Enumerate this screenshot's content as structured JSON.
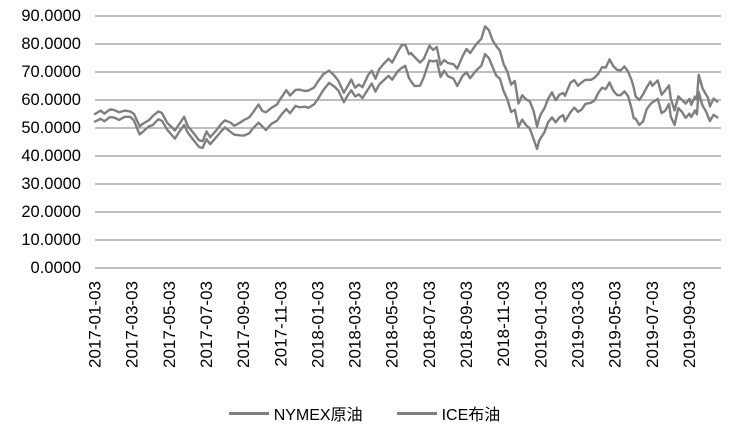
{
  "window": {
    "background": "#FFFFFF"
  },
  "chart_data": {
    "type": "line",
    "title": "",
    "xlabel": "",
    "ylabel": "",
    "ylim": [
      0,
      90
    ],
    "ytick_step": 10,
    "yticks": [
      "90.0000",
      "80.0000",
      "70.0000",
      "60.0000",
      "50.0000",
      "40.0000",
      "30.0000",
      "20.0000",
      "10.0000",
      "0.0000"
    ],
    "xticks": [
      "2017-01-03",
      "2017-03-03",
      "2017-05-03",
      "2017-07-03",
      "2017-09-03",
      "2017-11-03",
      "2018-01-03",
      "2018-03-03",
      "2018-05-03",
      "2018-07-03",
      "2018-09-03",
      "2018-11-03",
      "2019-01-03",
      "2019-03-03",
      "2019-05-03",
      "2019-07-03",
      "2019-09-03"
    ],
    "xtick_interval_months": 2,
    "x_range_months": [
      0,
      33.7
    ],
    "grid": "horizontal",
    "legend_position": "bottom",
    "colors": {
      "series_gray": "#7F7F7F",
      "gridline": "#7F7F7F",
      "axis_text": "#000000",
      "background": "#FFFFFF"
    },
    "x_months": [
      0.0,
      0.3,
      0.5,
      0.8,
      1.0,
      1.3,
      1.6,
      1.9,
      2.1,
      2.4,
      2.6,
      2.9,
      3.1,
      3.4,
      3.6,
      3.9,
      4.1,
      4.3,
      4.6,
      4.8,
      5.0,
      5.3,
      5.6,
      5.8,
      6.0,
      6.2,
      6.5,
      6.8,
      7.0,
      7.3,
      7.5,
      7.8,
      8.0,
      8.3,
      8.5,
      8.8,
      9.0,
      9.2,
      9.5,
      9.8,
      10.0,
      10.3,
      10.5,
      10.8,
      11.0,
      11.3,
      11.5,
      11.8,
      12.0,
      12.3,
      12.6,
      12.9,
      13.1,
      13.4,
      13.6,
      13.8,
      14.0,
      14.2,
      14.4,
      14.7,
      14.9,
      15.1,
      15.3,
      15.5,
      15.8,
      16.0,
      16.3,
      16.5,
      16.7,
      16.9,
      17.0,
      17.2,
      17.5,
      17.7,
      18.0,
      18.2,
      18.4,
      18.6,
      18.8,
      19.0,
      19.3,
      19.5,
      19.8,
      20.0,
      20.2,
      20.5,
      20.8,
      21.0,
      21.2,
      21.4,
      21.6,
      21.8,
      22.0,
      22.2,
      22.4,
      22.6,
      22.8,
      23.0,
      23.2,
      23.4,
      23.6,
      23.8,
      23.9,
      24.0,
      24.2,
      24.4,
      24.6,
      24.8,
      25.0,
      25.2,
      25.3,
      25.6,
      25.8,
      26.0,
      26.2,
      26.4,
      26.7,
      26.9,
      27.1,
      27.3,
      27.5,
      27.7,
      27.9,
      28.1,
      28.3,
      28.5,
      28.7,
      28.9,
      29.0,
      29.1,
      29.3,
      29.5,
      29.7,
      29.9,
      30.0,
      30.3,
      30.5,
      30.7,
      30.9,
      31.0,
      31.2,
      31.4,
      31.6,
      31.8,
      32.0,
      32.1,
      32.3,
      32.4,
      32.5,
      32.7,
      32.9,
      33.0,
      33.1,
      33.3,
      33.5
    ],
    "series": [
      {
        "name": "NYMEX原油",
        "color": "#7F7F7F",
        "values": [
          52.3,
          53.3,
          52.4,
          53.9,
          53.8,
          52.9,
          54.0,
          54.0,
          52.6,
          47.7,
          48.8,
          50.6,
          51.0,
          53.1,
          52.6,
          49.3,
          47.7,
          46.2,
          49.3,
          51.1,
          48.3,
          45.7,
          43.2,
          42.9,
          46.0,
          44.2,
          46.5,
          48.9,
          50.2,
          48.6,
          47.6,
          47.4,
          47.3,
          48.1,
          49.9,
          51.9,
          50.6,
          49.3,
          51.5,
          52.6,
          54.5,
          56.8,
          55.3,
          57.9,
          57.4,
          57.6,
          57.2,
          58.5,
          60.4,
          63.6,
          66.1,
          64.7,
          63.4,
          59.2,
          61.6,
          63.5,
          61.3,
          62.0,
          60.7,
          63.9,
          65.9,
          63.0,
          65.5,
          66.8,
          68.6,
          67.3,
          70.3,
          71.4,
          72.2,
          67.9,
          66.8,
          65.0,
          65.1,
          68.1,
          74.1,
          73.8,
          74.1,
          68.2,
          70.5,
          68.5,
          67.6,
          65.0,
          68.7,
          69.9,
          67.8,
          70.4,
          72.3,
          76.4,
          75.0,
          71.9,
          68.7,
          67.6,
          63.1,
          60.2,
          55.7,
          56.5,
          50.4,
          53.0,
          51.0,
          49.9,
          46.2,
          42.5,
          45.3,
          46.5,
          48.5,
          52.1,
          53.8,
          52.0,
          53.8,
          54.6,
          52.4,
          55.6,
          57.3,
          55.8,
          56.6,
          58.6,
          59.0,
          59.9,
          62.6,
          64.4,
          63.9,
          66.3,
          63.3,
          61.8,
          61.7,
          63.1,
          61.4,
          56.6,
          53.5,
          53.3,
          51.1,
          52.3,
          56.7,
          58.5,
          59.1,
          60.4,
          55.3,
          56.2,
          58.6,
          54.0,
          51.1,
          57.1,
          55.7,
          53.6,
          55.1,
          53.9,
          56.3,
          54.9,
          62.9,
          58.1,
          55.9,
          54.1,
          52.5,
          54.7,
          53.8
        ]
      },
      {
        "name": "ICE布油",
        "color": "#7F7F7F",
        "values": [
          55.0,
          56.2,
          55.1,
          56.6,
          56.5,
          55.6,
          56.2,
          55.9,
          55.0,
          50.6,
          51.6,
          52.8,
          54.2,
          55.9,
          55.4,
          51.7,
          50.5,
          49.1,
          52.0,
          54.0,
          50.6,
          48.2,
          45.6,
          45.3,
          48.8,
          46.7,
          48.9,
          51.5,
          52.7,
          51.9,
          50.8,
          51.9,
          52.8,
          53.8,
          55.5,
          58.4,
          56.1,
          55.6,
          57.2,
          58.4,
          60.6,
          63.5,
          61.6,
          63.6,
          63.7,
          63.2,
          63.4,
          64.5,
          66.6,
          69.3,
          70.5,
          68.6,
          66.9,
          62.6,
          64.9,
          67.3,
          64.4,
          65.5,
          64.6,
          68.9,
          70.5,
          67.6,
          71.0,
          72.6,
          74.7,
          73.4,
          77.2,
          79.5,
          79.8,
          76.4,
          76.8,
          75.4,
          73.4,
          74.7,
          79.4,
          77.9,
          78.9,
          72.6,
          74.3,
          73.2,
          72.8,
          71.2,
          75.8,
          78.2,
          76.8,
          79.7,
          81.9,
          86.3,
          85.0,
          81.4,
          79.3,
          77.6,
          72.8,
          70.1,
          65.5,
          66.8,
          58.8,
          61.7,
          60.2,
          59.6,
          56.3,
          50.5,
          53.2,
          54.9,
          57.1,
          60.5,
          62.7,
          59.9,
          61.9,
          62.5,
          61.5,
          66.2,
          67.1,
          65.1,
          66.3,
          67.2,
          67.2,
          68.0,
          69.4,
          71.7,
          71.6,
          74.5,
          72.1,
          70.8,
          70.6,
          72.0,
          70.1,
          66.9,
          64.5,
          61.3,
          60.0,
          62.0,
          64.5,
          66.6,
          65.1,
          67.0,
          61.9,
          63.5,
          65.2,
          60.5,
          56.3,
          61.3,
          60.0,
          58.7,
          60.4,
          58.3,
          61.2,
          60.2,
          69.0,
          64.3,
          61.9,
          60.8,
          57.7,
          60.5,
          59.4
        ]
      }
    ]
  }
}
